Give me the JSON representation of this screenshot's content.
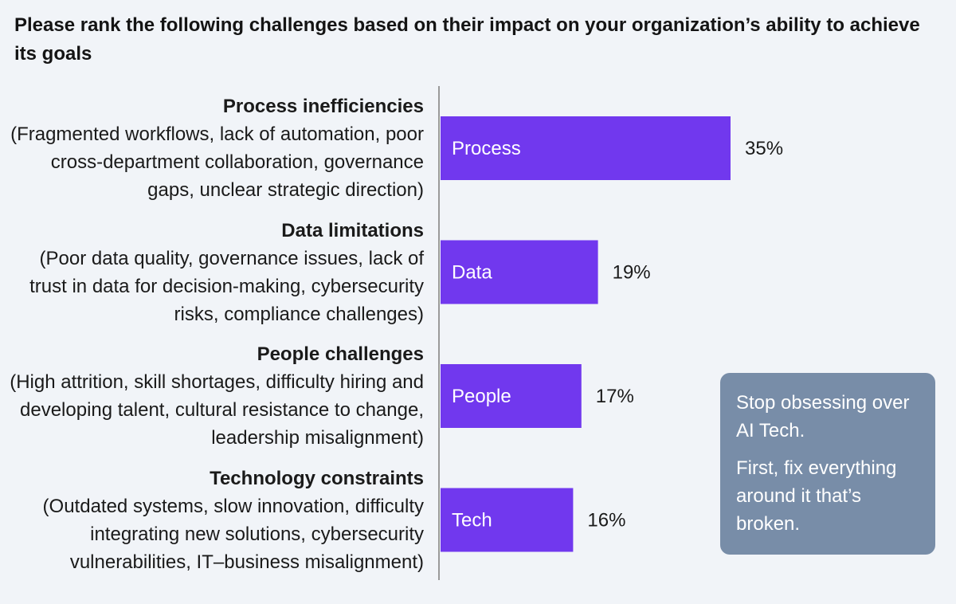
{
  "title": "Please rank the following challenges based on their impact on your organization’s ability to achieve its goals",
  "categories": [
    {
      "name": "Process inefficiencies",
      "description": "(Fragmented workflows, lack of automation, poor cross-department collaboration, governance gaps, unclear strategic direction)"
    },
    {
      "name": "Data limitations",
      "description": "(Poor data quality, governance issues, lack of trust in data for decision-making, cybersecurity risks, compliance challenges)"
    },
    {
      "name": "People challenges",
      "description": "(High attrition, skill shortages, difficulty hiring and developing talent, cultural resistance to change, leadership misalignment)"
    },
    {
      "name": "Technology constraints",
      "description": "(Outdated systems, slow innovation, difficulty integrating new solutions, cybersecurity vulnerabilities, IT–business misalignment)"
    }
  ],
  "chart_data": {
    "type": "bar",
    "orientation": "horizontal",
    "categories": [
      "Process",
      "Data",
      "People",
      "Tech"
    ],
    "values": [
      35,
      19,
      17,
      16
    ],
    "value_labels": [
      "35%",
      "19%",
      "17%",
      "16%"
    ],
    "unit": "%",
    "bar_color": "#7138ee",
    "xlim": [
      0,
      35
    ],
    "grid": false,
    "legend": "none"
  },
  "callout": {
    "line1": "Stop obsessing over AI Tech.",
    "line2": "First, fix everything around it that’s broken."
  },
  "colors": {
    "background": "#f1f4f8",
    "bar": "#7138ee",
    "callout_bg": "#788da8",
    "axis": "#9a9a9a"
  }
}
